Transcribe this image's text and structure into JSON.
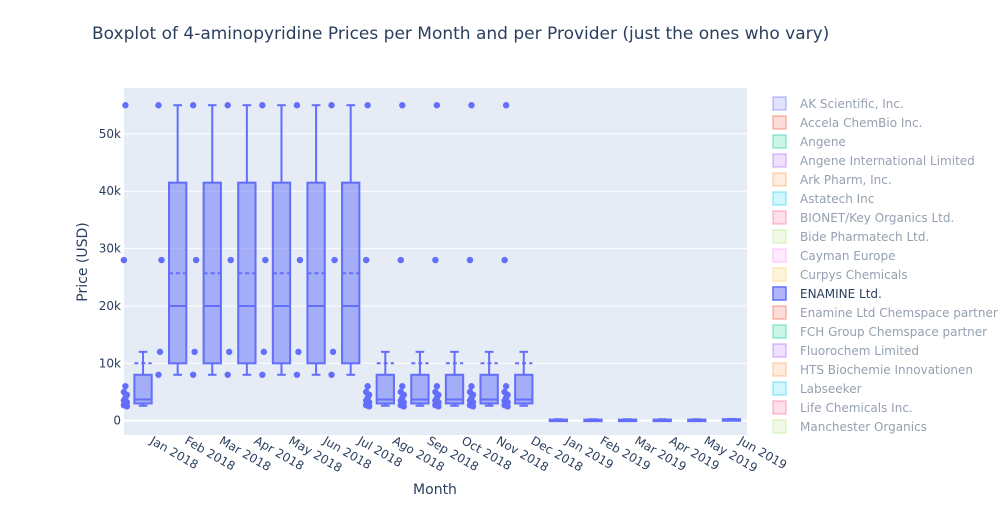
{
  "chart_data": {
    "type": "box",
    "title": "Boxplot of 4-aminopyridine Prices per Month and per Provider (just the ones who vary)",
    "xlabel": "Month",
    "ylabel": "Price (USD)",
    "ylim": [
      -2500,
      58000
    ],
    "yticks": [
      0,
      10000,
      20000,
      30000,
      40000,
      50000
    ],
    "ytick_labels": [
      "0",
      "10k",
      "20k",
      "30k",
      "40k",
      "50k"
    ],
    "categories": [
      "Jan 2018",
      "Feb 2018",
      "Mar 2018",
      "Apr 2018",
      "May 2018",
      "Jun 2018",
      "Jul 2018",
      "Ago 2018",
      "Sep 2018",
      "Oct 2018",
      "Nov 2018",
      "Dec 2018",
      "Jan 2019",
      "Feb 2019",
      "Mar 2019",
      "Apr 2019",
      "May 2019",
      "Jun 2019"
    ],
    "series": [
      {
        "name": "ENAMINE Ltd.",
        "color": "#636efa",
        "boxes": [
          {
            "month": "Jan 2018",
            "lowerfence": 2600,
            "q1": 3000,
            "median": 3700,
            "q3": 8000,
            "upperfence": 12000,
            "mean": 10000,
            "outliers": [
              28000,
              55000,
              2500,
              2700,
              3000,
              3200,
              3500,
              4000,
              4500,
              5000,
              6000
            ]
          },
          {
            "month": "Feb 2018",
            "lowerfence": 8000,
            "q1": 10000,
            "median": 20000,
            "q3": 41500,
            "upperfence": 55000,
            "mean": 25700,
            "outliers": [
              8000,
              12000,
              28000,
              55000
            ]
          },
          {
            "month": "Mar 2018",
            "lowerfence": 8000,
            "q1": 10000,
            "median": 20000,
            "q3": 41500,
            "upperfence": 55000,
            "mean": 25700,
            "outliers": [
              8000,
              12000,
              28000,
              55000
            ]
          },
          {
            "month": "Apr 2018",
            "lowerfence": 8000,
            "q1": 10000,
            "median": 20000,
            "q3": 41500,
            "upperfence": 55000,
            "mean": 25700,
            "outliers": [
              8000,
              12000,
              28000,
              55000
            ]
          },
          {
            "month": "May 2018",
            "lowerfence": 8000,
            "q1": 10000,
            "median": 20000,
            "q3": 41500,
            "upperfence": 55000,
            "mean": 25700,
            "outliers": [
              8000,
              12000,
              28000,
              55000
            ]
          },
          {
            "month": "Jun 2018",
            "lowerfence": 8000,
            "q1": 10000,
            "median": 20000,
            "q3": 41500,
            "upperfence": 55000,
            "mean": 25700,
            "outliers": [
              8000,
              12000,
              28000,
              55000
            ]
          },
          {
            "month": "Jul 2018",
            "lowerfence": 8000,
            "q1": 10000,
            "median": 20000,
            "q3": 41500,
            "upperfence": 55000,
            "mean": 25700,
            "outliers": [
              8000,
              12000,
              28000,
              55000
            ]
          },
          {
            "month": "Ago 2018",
            "lowerfence": 2600,
            "q1": 3000,
            "median": 3700,
            "q3": 8000,
            "upperfence": 12000,
            "mean": 10000,
            "outliers": [
              28000,
              55000,
              2500,
              2700,
              3000,
              3200,
              3500,
              4000,
              4500,
              5000,
              6000
            ]
          },
          {
            "month": "Sep 2018",
            "lowerfence": 2600,
            "q1": 3000,
            "median": 3700,
            "q3": 8000,
            "upperfence": 12000,
            "mean": 10000,
            "outliers": [
              28000,
              55000,
              2500,
              2700,
              3000,
              3200,
              3500,
              4000,
              4500,
              5000,
              6000
            ]
          },
          {
            "month": "Oct 2018",
            "lowerfence": 2600,
            "q1": 3000,
            "median": 3700,
            "q3": 8000,
            "upperfence": 12000,
            "mean": 10000,
            "outliers": [
              28000,
              55000,
              2500,
              2700,
              3000,
              3200,
              3500,
              4000,
              4500,
              5000,
              6000
            ]
          },
          {
            "month": "Nov 2018",
            "lowerfence": 2600,
            "q1": 3000,
            "median": 3700,
            "q3": 8000,
            "upperfence": 12000,
            "mean": 10000,
            "outliers": [
              28000,
              55000,
              2500,
              2700,
              3000,
              3200,
              3500,
              4000,
              4500,
              5000,
              6000
            ]
          },
          {
            "month": "Dec 2018",
            "lowerfence": 2600,
            "q1": 3000,
            "median": 3700,
            "q3": 8000,
            "upperfence": 12000,
            "mean": 10000,
            "outliers": [
              28000,
              55000,
              2500,
              2700,
              3000,
              3200,
              3500,
              4000,
              4500,
              5000,
              6000
            ]
          },
          {
            "month": "Jan 2019",
            "lowerfence": 50,
            "q1": 80,
            "median": 120,
            "q3": 180,
            "upperfence": 250,
            "mean": 140,
            "outliers": []
          },
          {
            "month": "Feb 2019",
            "lowerfence": 50,
            "q1": 80,
            "median": 120,
            "q3": 180,
            "upperfence": 250,
            "mean": 140,
            "outliers": []
          },
          {
            "month": "Mar 2019",
            "lowerfence": 50,
            "q1": 80,
            "median": 120,
            "q3": 180,
            "upperfence": 250,
            "mean": 140,
            "outliers": []
          },
          {
            "month": "Apr 2019",
            "lowerfence": 50,
            "q1": 80,
            "median": 120,
            "q3": 180,
            "upperfence": 250,
            "mean": 140,
            "outliers": []
          },
          {
            "month": "May 2019",
            "lowerfence": 50,
            "q1": 80,
            "median": 120,
            "q3": 180,
            "upperfence": 250,
            "mean": 140,
            "outliers": []
          },
          {
            "month": "Jun 2019",
            "lowerfence": 50,
            "q1": 80,
            "median": 120,
            "q3": 250,
            "upperfence": 300,
            "mean": 160,
            "outliers": []
          }
        ]
      }
    ],
    "grid": true,
    "background": "#e5ecf6",
    "legend": {
      "placement": "right",
      "active": "ENAMINE Ltd.",
      "items": [
        {
          "name": "AK Scientific, Inc.",
          "color": "#636efa"
        },
        {
          "name": "Accela ChemBio Inc.",
          "color": "#EF553B"
        },
        {
          "name": "Angene",
          "color": "#00cc96"
        },
        {
          "name": "Angene International Limited",
          "color": "#ab63fa"
        },
        {
          "name": "Ark Pharm, Inc.",
          "color": "#FFA15A"
        },
        {
          "name": "Astatech Inc",
          "color": "#19d3f3"
        },
        {
          "name": "BIONET/Key Organics Ltd.",
          "color": "#FF6692"
        },
        {
          "name": "Bide Pharmatech Ltd.",
          "color": "#B6E880"
        },
        {
          "name": "Cayman Europe",
          "color": "#FF97FF"
        },
        {
          "name": "Curpys Chemicals",
          "color": "#FECB52"
        },
        {
          "name": "ENAMINE Ltd.",
          "color": "#636efa"
        },
        {
          "name": "Enamine Ltd Chemspace partner",
          "color": "#EF553B"
        },
        {
          "name": "FCH Group Chemspace partner",
          "color": "#00cc96"
        },
        {
          "name": "Fluorochem Limited",
          "color": "#ab63fa"
        },
        {
          "name": "HTS Biochemie Innovationen",
          "color": "#FFA15A"
        },
        {
          "name": "Labseeker",
          "color": "#19d3f3"
        },
        {
          "name": "Life Chemicals Inc.",
          "color": "#FF6692"
        },
        {
          "name": "Manchester Organics",
          "color": "#B6E880"
        }
      ]
    }
  }
}
